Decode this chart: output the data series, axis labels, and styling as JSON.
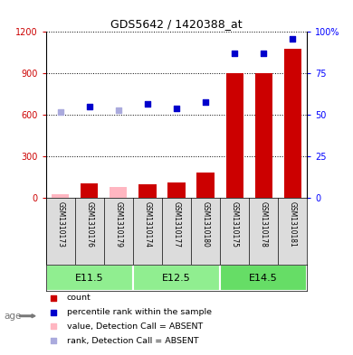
{
  "title": "GDS5642 / 1420388_at",
  "samples": [
    "GSM1310173",
    "GSM1310176",
    "GSM1310179",
    "GSM1310174",
    "GSM1310177",
    "GSM1310180",
    "GSM1310175",
    "GSM1310178",
    "GSM1310181"
  ],
  "groups": [
    {
      "label": "E11.5",
      "indices": [
        0,
        1,
        2
      ]
    },
    {
      "label": "E12.5",
      "indices": [
        3,
        4,
        5
      ]
    },
    {
      "label": "E14.5",
      "indices": [
        6,
        7,
        8
      ]
    }
  ],
  "count_values": [
    30,
    110,
    80,
    100,
    115,
    185,
    900,
    900,
    1080
  ],
  "count_absent": [
    true,
    false,
    true,
    false,
    false,
    false,
    false,
    false,
    false
  ],
  "rank_values": [
    52,
    55,
    53,
    57,
    54,
    58,
    87,
    87,
    96
  ],
  "rank_absent": [
    true,
    false,
    true,
    false,
    false,
    false,
    false,
    false,
    false
  ],
  "ylim_left": [
    0,
    1200
  ],
  "ylim_right": [
    0,
    100
  ],
  "yticks_left": [
    0,
    300,
    600,
    900,
    1200
  ],
  "yticks_right": [
    0,
    25,
    50,
    75,
    100
  ],
  "ytick_labels_left": [
    "0",
    "300",
    "600",
    "900",
    "1200"
  ],
  "ytick_labels_right": [
    "0",
    "25",
    "50",
    "75",
    "100%"
  ],
  "bar_color_present": "#CC0000",
  "bar_color_absent": "#FFB6C1",
  "dot_color_present": "#0000CC",
  "dot_color_absent": "#AAAADD",
  "sample_bg_color": "#DCDCDC",
  "group_bg_color": "#90EE90",
  "group_bg_color2": "#66DD66",
  "age_label": "age",
  "legend_items": [
    {
      "color": "#CC0000",
      "label": "count"
    },
    {
      "color": "#0000CC",
      "label": "percentile rank within the sample"
    },
    {
      "color": "#FFB6C1",
      "label": "value, Detection Call = ABSENT"
    },
    {
      "color": "#AAAADD",
      "label": "rank, Detection Call = ABSENT"
    }
  ]
}
